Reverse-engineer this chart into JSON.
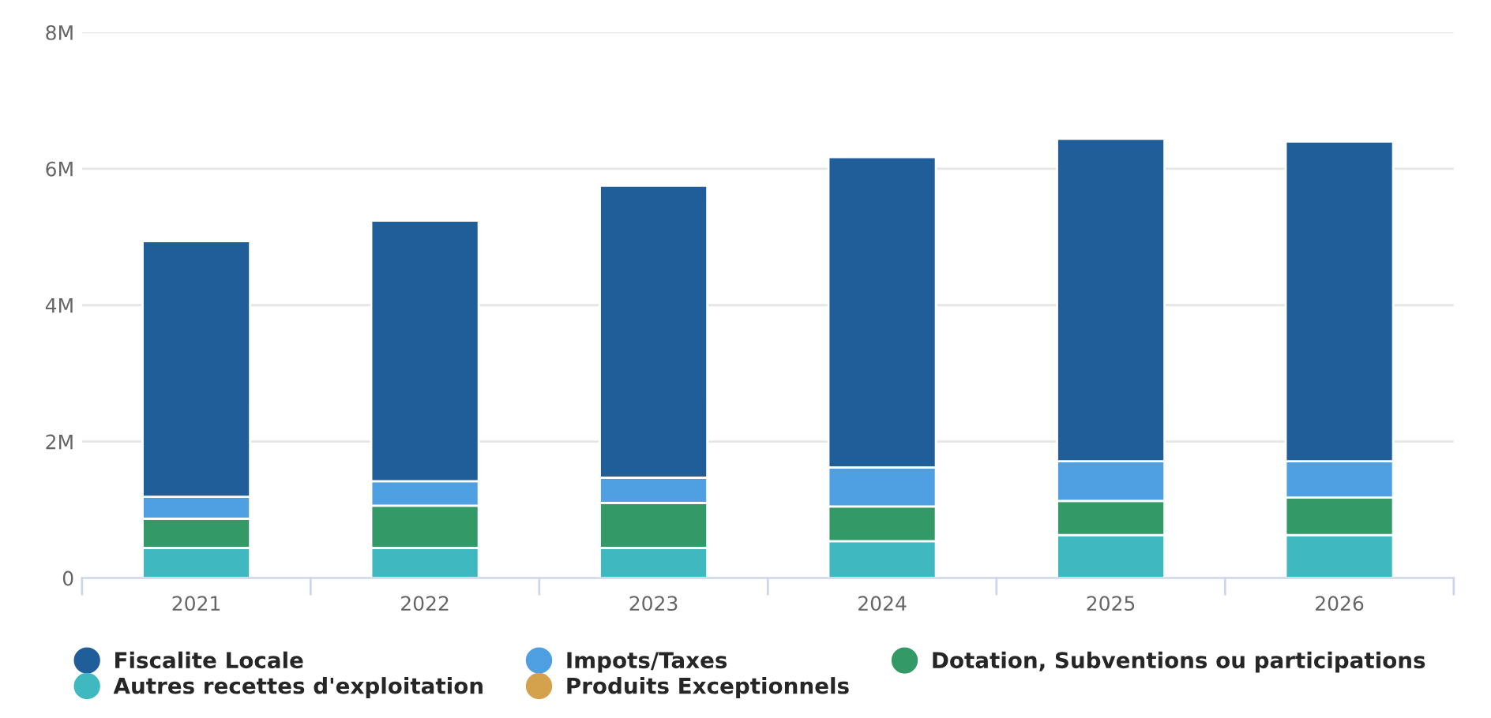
{
  "chart_data": {
    "type": "bar",
    "stacked": true,
    "categories": [
      "2021",
      "2022",
      "2023",
      "2024",
      "2025",
      "2026"
    ],
    "series": [
      {
        "name": "Produits Exceptionnels",
        "color": "#d4a24c",
        "values": [
          0,
          0,
          0,
          0,
          0,
          0
        ]
      },
      {
        "name": "Autres recettes d'exploitation",
        "color": "#40b8c0",
        "values": [
          440000,
          440000,
          440000,
          540000,
          630000,
          630000
        ]
      },
      {
        "name": "Dotation, Subventions ou participations",
        "color": "#339966",
        "values": [
          430000,
          620000,
          660000,
          510000,
          500000,
          550000
        ]
      },
      {
        "name": "Impots/Taxes",
        "color": "#4f9fe3",
        "values": [
          320000,
          360000,
          370000,
          570000,
          580000,
          530000
        ]
      },
      {
        "name": "Fiscalite Locale",
        "color": "#1f5e99",
        "values": [
          3750000,
          3820000,
          4280000,
          4550000,
          4730000,
          4690000
        ]
      }
    ],
    "ylim": [
      0,
      8000000
    ],
    "yticks": [
      {
        "value": 0,
        "label": "0"
      },
      {
        "value": 2000000,
        "label": "2M"
      },
      {
        "value": 4000000,
        "label": "4M"
      },
      {
        "value": 6000000,
        "label": "6M"
      },
      {
        "value": 8000000,
        "label": "8M"
      }
    ],
    "grid": "y",
    "legend": "bottom"
  }
}
